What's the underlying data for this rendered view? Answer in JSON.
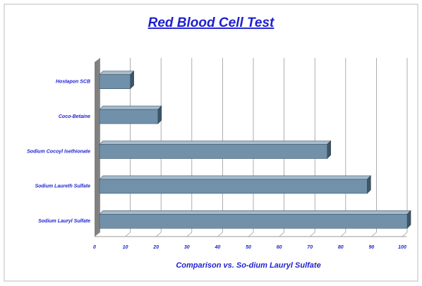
{
  "chart_data": {
    "type": "bar",
    "orientation": "horizontal",
    "title": "Red Blood Cell Test",
    "x_label": "Comparison vs. So-dium Lauryl Sulfate",
    "categories": [
      "Hostapon SCB",
      "Coco-Betaine",
      "Sodium Cocoyl Isethionate",
      "Sodium Laureth Sulfate",
      "Sodium Lauryl Sulfate"
    ],
    "values": [
      10,
      19,
      74,
      87,
      100
    ],
    "color": "#7190a9",
    "xlim": [
      0,
      100
    ],
    "xticks": [
      0,
      10,
      20,
      30,
      40,
      50,
      60,
      70,
      80,
      90,
      100
    ],
    "grid": true
  }
}
